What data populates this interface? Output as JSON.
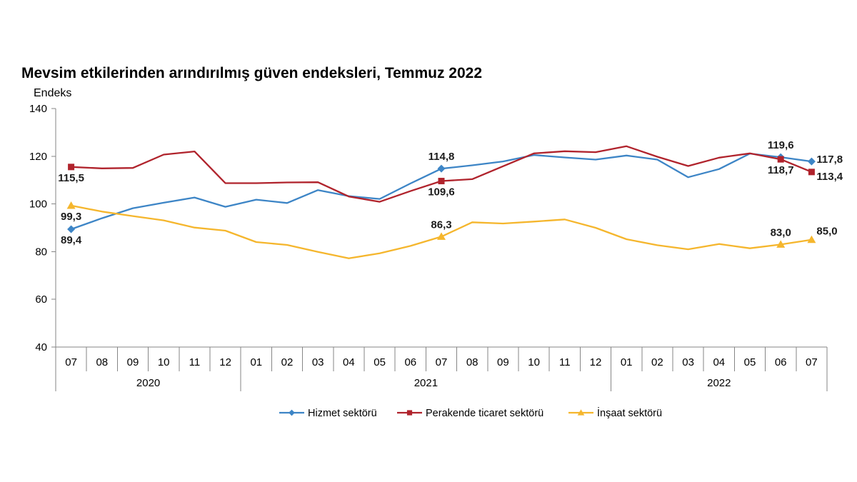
{
  "chart_data": {
    "type": "line",
    "title": "Mevsim etkilerinden arındırılmış güven endeksleri, Temmuz 2022",
    "ylabel": "Endeks",
    "ylim": [
      40,
      140
    ],
    "y_ticks": [
      140,
      120,
      100,
      80,
      60,
      40
    ],
    "grid": false,
    "legend_position": "bottom",
    "categories": [
      "07",
      "08",
      "09",
      "10",
      "11",
      "12",
      "01",
      "02",
      "03",
      "04",
      "05",
      "06",
      "07",
      "08",
      "09",
      "10",
      "11",
      "12",
      "01",
      "02",
      "03",
      "04",
      "05",
      "06",
      "07"
    ],
    "year_groups": [
      {
        "label": "2020",
        "span": 6
      },
      {
        "label": "2021",
        "span": 12
      },
      {
        "label": "2022",
        "span": 7
      }
    ],
    "series": [
      {
        "name": "Hizmet sektörü",
        "color": "#3D85C6",
        "marker": "diamond-icon",
        "values": [
          89.4,
          94.0,
          98.2,
          100.5,
          102.7,
          98.8,
          101.8,
          100.4,
          105.8,
          103.3,
          102.1,
          108.6,
          114.8,
          116.2,
          117.8,
          120.5,
          119.5,
          118.6,
          120.3,
          118.6,
          111.2,
          114.6,
          121.1,
          119.6,
          117.8
        ]
      },
      {
        "name": "Perakende ticaret sektörü",
        "color": "#B0232C",
        "marker": "square-icon",
        "values": [
          115.5,
          114.9,
          115.1,
          120.7,
          122.0,
          108.7,
          108.7,
          109.0,
          109.1,
          103.1,
          100.9,
          105.4,
          109.6,
          110.4,
          115.8,
          121.2,
          122.1,
          121.7,
          124.2,
          119.8,
          115.9,
          119.4,
          121.2,
          118.7,
          113.4
        ]
      },
      {
        "name": "İnşaat sektörü",
        "color": "#F5B62D",
        "marker": "triangle-icon",
        "values": [
          99.3,
          96.8,
          94.9,
          93.1,
          90.1,
          88.8,
          84.0,
          82.8,
          79.9,
          77.2,
          79.3,
          82.4,
          86.3,
          92.3,
          91.8,
          92.6,
          93.5,
          90.0,
          85.2,
          82.7,
          81.0,
          83.2,
          81.4,
          83.0,
          85.0
        ]
      }
    ],
    "data_labels": [
      {
        "series": 0,
        "index": 0,
        "text": "89,4",
        "position": "below"
      },
      {
        "series": 1,
        "index": 0,
        "text": "115,5",
        "position": "below"
      },
      {
        "series": 2,
        "index": 0,
        "text": "99,3",
        "position": "below"
      },
      {
        "series": 0,
        "index": 12,
        "text": "114,8",
        "position": "above"
      },
      {
        "series": 1,
        "index": 12,
        "text": "109,6",
        "position": "below"
      },
      {
        "series": 2,
        "index": 12,
        "text": "86,3",
        "position": "above"
      },
      {
        "series": 0,
        "index": 23,
        "text": "119,6",
        "position": "above"
      },
      {
        "series": 1,
        "index": 23,
        "text": "118,7",
        "position": "below"
      },
      {
        "series": 2,
        "index": 23,
        "text": "83,0",
        "position": "above"
      },
      {
        "series": 0,
        "index": 24,
        "text": "117,8",
        "position": "right"
      },
      {
        "series": 1,
        "index": 24,
        "text": "113,4",
        "position": "lower-right"
      },
      {
        "series": 2,
        "index": 24,
        "text": "85,0",
        "position": "upper-right"
      }
    ]
  }
}
